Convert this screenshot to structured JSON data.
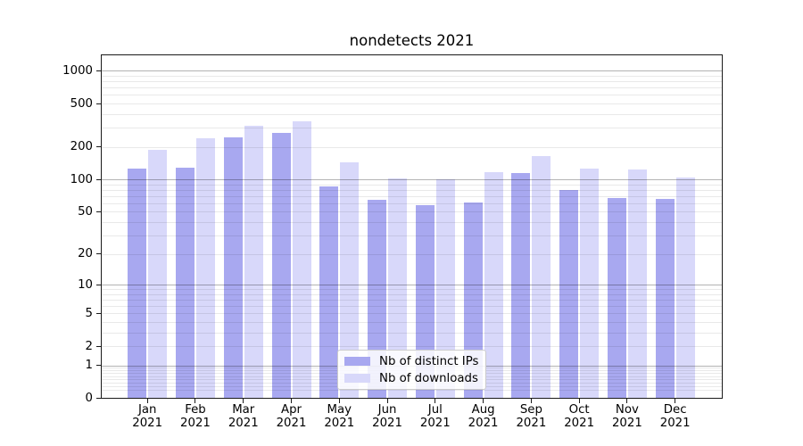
{
  "chart_data": {
    "type": "bar",
    "title": "nondetects 2021",
    "categories": [
      {
        "month": "Jan",
        "year": "2021"
      },
      {
        "month": "Feb",
        "year": "2021"
      },
      {
        "month": "Mar",
        "year": "2021"
      },
      {
        "month": "Apr",
        "year": "2021"
      },
      {
        "month": "May",
        "year": "2021"
      },
      {
        "month": "Jun",
        "year": "2021"
      },
      {
        "month": "Jul",
        "year": "2021"
      },
      {
        "month": "Aug",
        "year": "2021"
      },
      {
        "month": "Sep",
        "year": "2021"
      },
      {
        "month": "Oct",
        "year": "2021"
      },
      {
        "month": "Nov",
        "year": "2021"
      },
      {
        "month": "Dec",
        "year": "2021"
      }
    ],
    "series": [
      {
        "name": "Nb of distinct IPs",
        "color": "#a8a8f0",
        "values": [
          125,
          128,
          242,
          266,
          85,
          64,
          57,
          60,
          113,
          79,
          67,
          66
        ]
      },
      {
        "name": "Nb of downloads",
        "color": "#d8d8fa",
        "values": [
          187,
          238,
          310,
          340,
          142,
          102,
          100,
          115,
          163,
          125,
          123,
          103
        ]
      }
    ],
    "y_axis": {
      "scale": "log1p",
      "ticks": [
        0,
        1,
        2,
        5,
        10,
        20,
        50,
        100,
        200,
        500,
        1000
      ],
      "ylim": [
        0,
        1400
      ],
      "grid": "both",
      "major_grid_values": [
        1,
        10,
        100,
        1000
      ]
    },
    "xlabel": "",
    "ylabel": "",
    "legend": {
      "position": "lower center"
    },
    "grid_colors": {
      "major": "#b3b3b3",
      "minor": "#e9e9e9"
    }
  }
}
